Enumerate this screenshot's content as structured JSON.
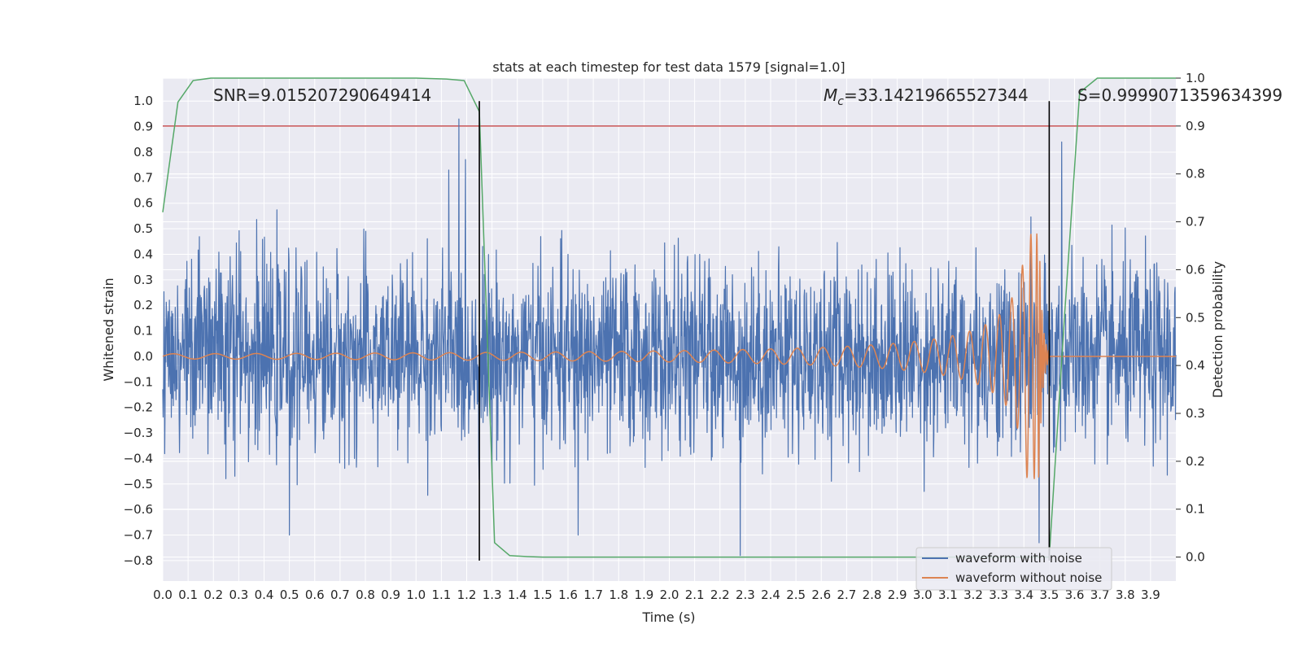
{
  "chart_data": {
    "type": "line",
    "title": "stats at each timestep for test data 1579 [signal=1.0]",
    "xlabel": "Time (s)",
    "ylabel": "Whitened strain",
    "y2label": "Detection probability",
    "xlim": [
      0.0,
      4.0
    ],
    "ylim": [
      -0.88,
      1.09
    ],
    "y2lim": [
      -0.05,
      1.0
    ],
    "x_ticks": [
      0.0,
      0.1,
      0.2,
      0.3,
      0.4,
      0.5,
      0.6,
      0.7,
      0.8,
      0.9,
      1.0,
      1.1,
      1.2,
      1.3,
      1.4,
      1.5,
      1.6,
      1.7,
      1.8,
      1.9,
      2.0,
      2.1,
      2.2,
      2.3,
      2.4,
      2.5,
      2.6,
      2.7,
      2.8,
      2.9,
      3.0,
      3.1,
      3.2,
      3.3,
      3.4,
      3.5,
      3.6,
      3.7,
      3.8,
      3.9
    ],
    "y_ticks": [
      -0.8,
      -0.7,
      -0.6,
      -0.5,
      -0.4,
      -0.3,
      -0.2,
      -0.1,
      0.0,
      0.1,
      0.2,
      0.3,
      0.4,
      0.5,
      0.6,
      0.7,
      0.8,
      0.9,
      1.0
    ],
    "y2_ticks": [
      0.0,
      0.1,
      0.2,
      0.3,
      0.4,
      0.5,
      0.6,
      0.7,
      0.8,
      0.9,
      1.0
    ],
    "grid": true,
    "legend_position": "bottom-right",
    "annotations": {
      "snr": "SNR=9.015207290649414",
      "mc_symbol": "M",
      "mc_sub": "c",
      "mc_value": "=33.14219665527344",
      "s": "S=0.9999071359634399"
    },
    "threshold_line": {
      "axis": "y2",
      "value": 0.9,
      "color": "#c44e52"
    },
    "vertical_lines": [
      {
        "x": 1.25,
        "y_from": -0.8,
        "y_to": 1.0
      },
      {
        "x": 3.5,
        "y_from": -0.8,
        "y_to": 1.0
      }
    ],
    "series": [
      {
        "name": "waveform with noise",
        "axis": "y",
        "color": "#4c72b0",
        "style": "noise",
        "std": 0.18,
        "tall_peaks": [
          {
            "x": 1.17,
            "y": 0.93
          },
          {
            "x": 1.13,
            "y": 0.73
          },
          {
            "x": 3.55,
            "y": 0.84
          },
          {
            "x": 2.28,
            "y": -0.78
          },
          {
            "x": 3.46,
            "y": -0.73
          },
          {
            "x": 0.5,
            "y": -0.7
          },
          {
            "x": 1.64,
            "y": -0.7
          }
        ]
      },
      {
        "name": "waveform without noise",
        "axis": "y",
        "color": "#dd8452",
        "style": "chirp",
        "start": 0.0,
        "merger": 3.46,
        "ringdown_end": 3.5,
        "start_amplitude": 0.01,
        "peak_amplitude": 0.48
      },
      {
        "name": "detection probability",
        "axis": "y2",
        "color": "#55a868",
        "style": "line",
        "x": [
          0.0,
          0.06,
          0.12,
          0.19,
          0.25,
          0.5,
          0.75,
          1.0,
          1.12,
          1.19,
          1.25,
          1.31,
          1.37,
          1.44,
          1.5,
          2.0,
          2.5,
          3.0,
          3.44,
          3.5,
          3.56,
          3.62,
          3.69,
          3.75,
          4.0
        ],
        "y": [
          0.72,
          0.95,
          0.995,
          1.0,
          1.0,
          1.0,
          1.0,
          1.0,
          0.998,
          0.995,
          0.93,
          0.03,
          0.003,
          0.001,
          0.0,
          0.0,
          0.0,
          0.0,
          0.0,
          0.0,
          0.5,
          0.97,
          1.0,
          1.0,
          1.0
        ]
      }
    ]
  }
}
